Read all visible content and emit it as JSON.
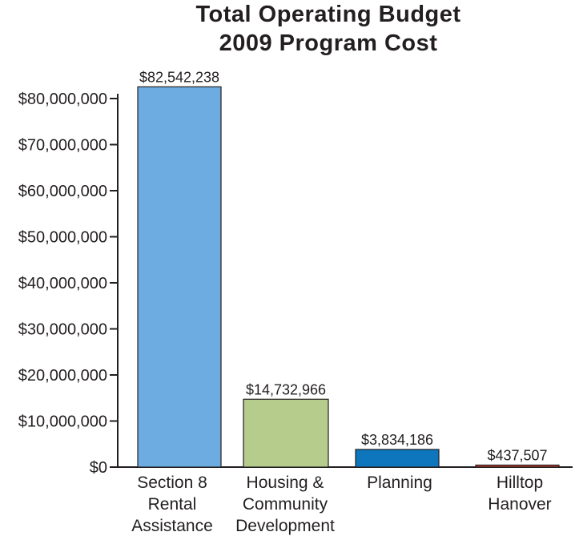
{
  "chart_data": {
    "type": "bar",
    "title_lines": [
      "Total Operating Budget",
      "2009 Program Cost"
    ],
    "categories": [
      [
        "Section 8",
        "Rental",
        "Assistance"
      ],
      [
        "Housing &",
        "Community",
        "Development"
      ],
      [
        "Planning"
      ],
      [
        "Hilltop",
        "Hanover"
      ]
    ],
    "values": [
      82542238,
      14732966,
      3834186,
      437507
    ],
    "data_labels": [
      "$82,542,238",
      "$14,732,966",
      "$3,834,186",
      "$437,507"
    ],
    "colors": [
      "#6cace0",
      "#b5cc8c",
      "#0e76bc",
      "#bf3a2b"
    ],
    "y_ticks": [
      0,
      10000000,
      20000000,
      30000000,
      40000000,
      50000000,
      60000000,
      70000000,
      80000000
    ],
    "y_tick_labels": [
      "$0",
      "$10,000,000",
      "$20,000,000",
      "$30,000,000",
      "$40,000,000",
      "$50,000,000",
      "$60,000,000",
      "$70,000,000",
      "$80,000,000"
    ],
    "ylim": [
      0,
      80000000
    ],
    "xlabel": "",
    "ylabel": "",
    "grid": false,
    "legend": "none"
  }
}
